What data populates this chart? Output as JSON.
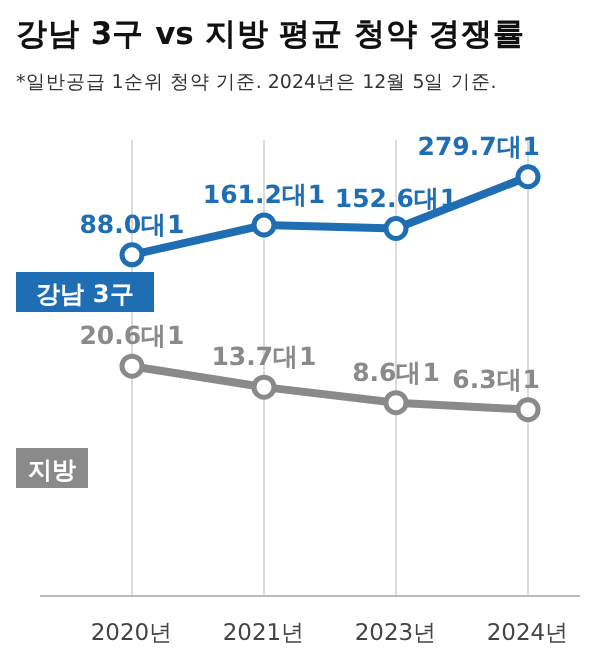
{
  "chart_data": {
    "type": "line",
    "title": "강남 3구 vs 지방 평균 청약 경쟁률",
    "annotations": [
      "*일반공급 1순위 청약 기준. 2024년은 12월 5일 기준."
    ],
    "categories": [
      "2020년",
      "2021년",
      "2023년",
      "2024년"
    ],
    "series": [
      {
        "name": "강남 3구",
        "color": "#1f6db3",
        "values": [
          88.0,
          161.2,
          152.6,
          279.7
        ],
        "value_labels": [
          "88.0대1",
          "161.2대1",
          "152.6대1",
          "279.7대1"
        ]
      },
      {
        "name": "지방",
        "color": "#8a8a8a",
        "axis": "y2",
        "values": [
          20.6,
          13.7,
          8.6,
          6.3
        ],
        "value_labels": [
          "20.6대1",
          "13.7대1",
          "8.6대1",
          "6.3대1"
        ]
      }
    ],
    "ylim": [
      -750,
      370
    ],
    "y2lim": [
      -55,
      95
    ],
    "marker": "circle",
    "grid": "x"
  }
}
